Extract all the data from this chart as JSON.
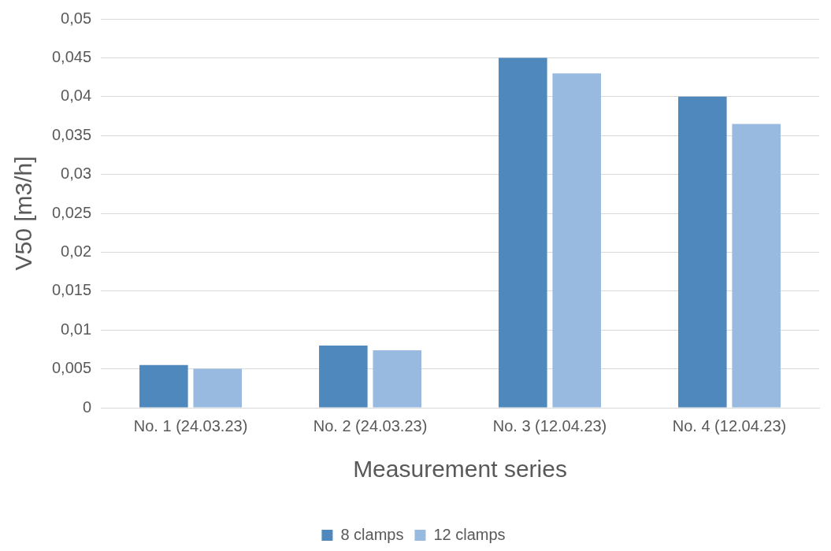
{
  "chart_data": {
    "type": "bar",
    "xlabel": "Measurement series",
    "ylabel": "V50 [m3/h]",
    "categories": [
      "No. 1 (24.03.23)",
      "No. 2 (24.03.23)",
      "No. 3 (12.04.23)",
      "No. 4 (12.04.23)"
    ],
    "series": [
      {
        "name": "8 clamps",
        "color": "#4f88bd",
        "values": [
          0.0055,
          0.008,
          0.045,
          0.04
        ]
      },
      {
        "name": "12 clamps",
        "color": "#98b9e0",
        "values": [
          0.005,
          0.0074,
          0.043,
          0.0365
        ]
      }
    ],
    "ylim": [
      0,
      0.05
    ],
    "yticks": [
      0,
      {
        "value": 0.005,
        "label": "0,005"
      },
      {
        "value": 0.01,
        "label": "0,01"
      },
      {
        "value": 0.015,
        "label": "0,015"
      },
      {
        "value": 0.02,
        "label": "0,02"
      },
      {
        "value": 0.025,
        "label": "0,025"
      },
      {
        "value": 0.03,
        "label": "0,03"
      },
      {
        "value": 0.035,
        "label": "0,035"
      },
      {
        "value": 0.04,
        "label": "0,04"
      },
      {
        "value": 0.045,
        "label": "0,045"
      },
      {
        "value": 0.05,
        "label": "0,05"
      }
    ],
    "grid": "y",
    "legend": "bottom"
  }
}
